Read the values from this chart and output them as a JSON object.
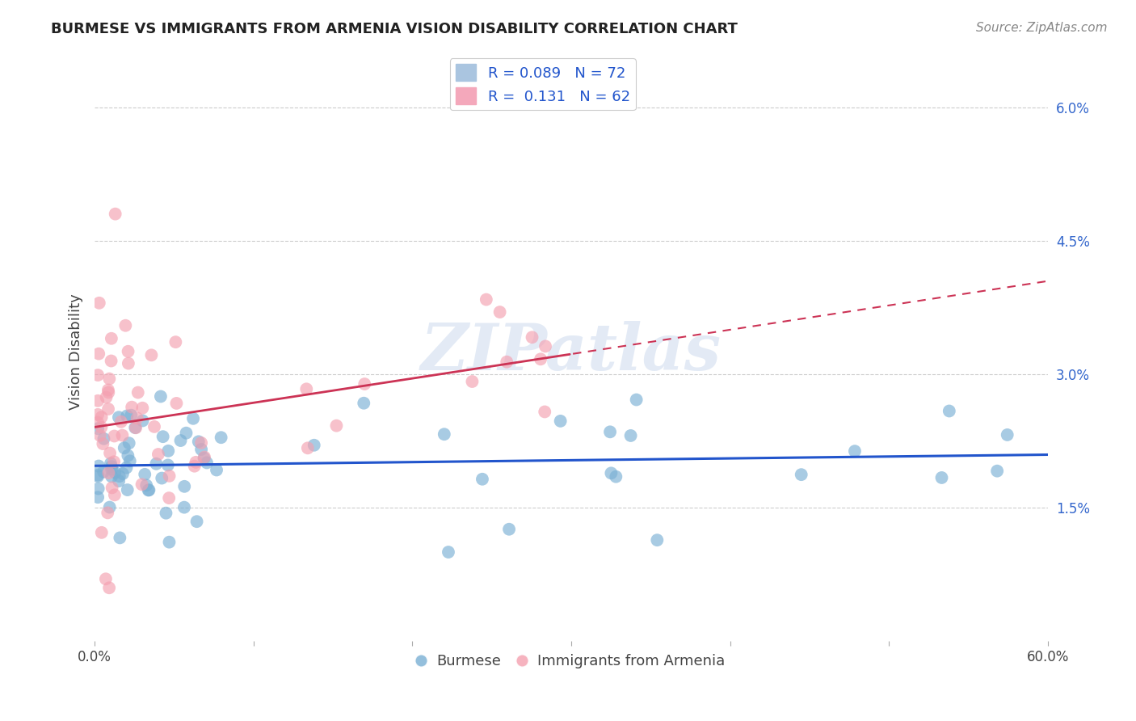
{
  "title": "BURMESE VS IMMIGRANTS FROM ARMENIA VISION DISABILITY CORRELATION CHART",
  "source": "Source: ZipAtlas.com",
  "ylabel": "Vision Disability",
  "xlim": [
    0.0,
    0.6
  ],
  "ylim": [
    0.0,
    0.065
  ],
  "burmese_color": "#7ab0d4",
  "armenia_color": "#f4a0b0",
  "burmese_line_color": "#2255cc",
  "armenia_line_color": "#cc3355",
  "burmese_R": 0.089,
  "burmese_N": 72,
  "armenia_R": 0.131,
  "armenia_N": 62,
  "legend_label_1": "Burmese",
  "legend_label_2": "Immigrants from Armenia",
  "watermark": "ZIPatlas",
  "title_fontsize": 13,
  "axis_fontsize": 12,
  "legend_fontsize": 13
}
